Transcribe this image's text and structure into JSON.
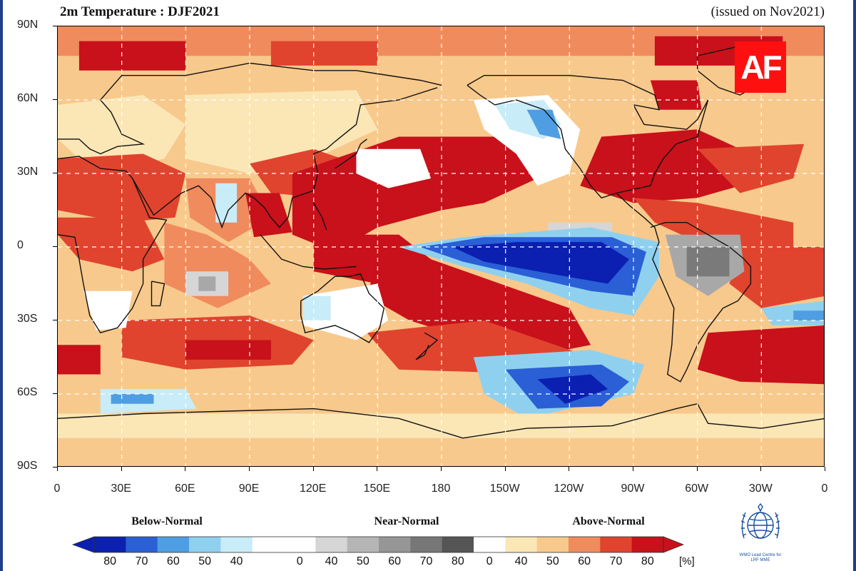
{
  "header": {
    "title": "2m Temperature : DJF2021",
    "issued": "(issued on Nov2021)"
  },
  "map": {
    "lat_labels": [
      "90N",
      "60N",
      "30N",
      "0",
      "30S",
      "60S",
      "90S"
    ],
    "lon_labels": [
      "0",
      "30E",
      "60E",
      "90E",
      "120E",
      "150E",
      "180",
      "150W",
      "120W",
      "90W",
      "60W",
      "30W",
      "0"
    ],
    "colors": {
      "above_80": "#c8111a",
      "above_70": "#e0442e",
      "above_60": "#f08b5e",
      "above_50": "#f8c98c",
      "above_40": "#fbe6b6",
      "near": "#ffffff",
      "near_gray_light": "#d6d6d6",
      "near_gray_mid": "#a8a8a8",
      "near_gray_dark": "#7a7a7a",
      "below_40": "#c8ecf8",
      "below_50": "#8fd0ef",
      "below_60": "#4f9ee3",
      "below_70": "#2a5fd6",
      "below_80": "#0b1fb0",
      "coast": "#111111"
    }
  },
  "legend": {
    "below_label": "Below-Normal",
    "near_label": "Near-Normal",
    "above_label": "Above-Normal",
    "tick_labels": [
      "80",
      "70",
      "60",
      "50",
      "40",
      "0",
      "40",
      "50",
      "60",
      "70",
      "80",
      "0",
      "40",
      "50",
      "60",
      "70",
      "80"
    ],
    "unit": "[%]",
    "segment_colors": [
      "#0b1fb0",
      "#2a5fd6",
      "#4f9ee3",
      "#8fd0ef",
      "#c8ecf8",
      "#ffffff",
      "#ffffff",
      "#d6d6d6",
      "#b5b5b5",
      "#969696",
      "#777777",
      "#555555",
      "#ffffff",
      "#fbe6b6",
      "#f8c98c",
      "#f08b5e",
      "#e0442e",
      "#c8111a"
    ]
  },
  "branding": {
    "af_logo": "AF",
    "wmo_caption_1": "WMO Lead Centre for",
    "wmo_caption_2": "LRF MME",
    "wmo_icon": "un-globe-emblem-icon"
  }
}
